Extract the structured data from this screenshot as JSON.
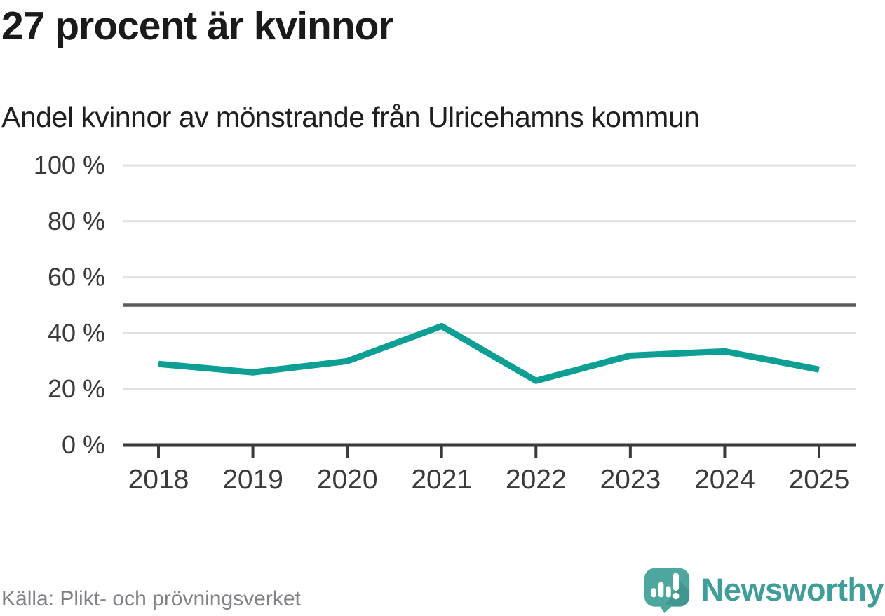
{
  "chart_data": {
    "type": "line",
    "title": "27 procent är kvinnor",
    "subtitle": "Andel kvinnor av mönstrande från Ulricehamns kommun",
    "categories": [
      "2018",
      "2019",
      "2020",
      "2021",
      "2022",
      "2023",
      "2024",
      "2025"
    ],
    "values": [
      29,
      26,
      30,
      42.5,
      23,
      32,
      33.5,
      27
    ],
    "series_name": "Andel kvinnor av mönstrande",
    "unit": "%",
    "xlabel": "",
    "ylabel": "",
    "ylim": [
      0,
      100
    ],
    "yticks": [
      0,
      20,
      40,
      60,
      80,
      100
    ],
    "ytick_labels": [
      "0 %",
      "20 %",
      "40 %",
      "60 %",
      "80 %",
      "100 %"
    ],
    "reference_line": 50,
    "grid": true,
    "legend": "none",
    "colors": {
      "line": "#0d9e94",
      "grid": "#e0e0e0",
      "reference": "#5a5b5e",
      "axis": "#3a3a3a",
      "title_text": "#1a1a1a"
    }
  },
  "footer": {
    "source": "Källa: Plikt- och prövningsverket",
    "logo_text": "Newsworthy",
    "logo_color": "#3f9e99",
    "logo_icon": "newsworthy-speech-bubble-bar-chart-icon"
  }
}
